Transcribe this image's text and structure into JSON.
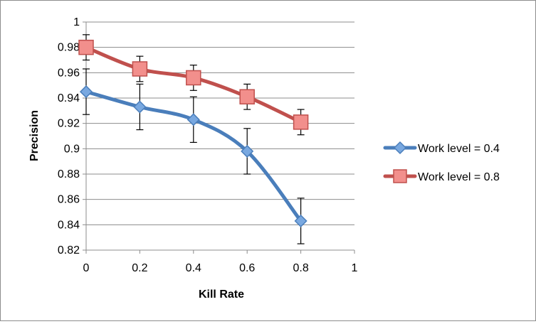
{
  "chart_data": {
    "type": "line",
    "title": "",
    "xlabel": "Kill Rate",
    "ylabel": "Precision",
    "xlim": [
      0,
      1
    ],
    "ylim": [
      0.82,
      1
    ],
    "x_ticks": [
      0,
      0.2,
      0.4,
      0.6,
      0.8,
      1
    ],
    "x_tick_labels": [
      "0",
      "0.2",
      "0.4",
      "0.6",
      "0.8",
      "1"
    ],
    "y_ticks": [
      0.82,
      0.84,
      0.86,
      0.88,
      0.9,
      0.92,
      0.94,
      0.96,
      0.98,
      1
    ],
    "y_tick_labels": [
      "0.82",
      "0.84",
      "0.86",
      "0.88",
      "0.9",
      "0.92",
      "0.94",
      "0.96",
      "0.98",
      "1"
    ],
    "grid": "horizontal",
    "legend_position": "right",
    "series": [
      {
        "name": "Work level = 0.4",
        "color": "#4a7ebb",
        "marker": "diamond",
        "x": [
          0,
          0.2,
          0.4,
          0.6,
          0.8
        ],
        "y": [
          0.945,
          0.933,
          0.923,
          0.898,
          0.843
        ],
        "error": [
          0.018,
          0.018,
          0.018,
          0.018,
          0.018
        ]
      },
      {
        "name": "Work level = 0.8",
        "color": "#c0504d",
        "marker": "square",
        "x": [
          0,
          0.2,
          0.4,
          0.6,
          0.8
        ],
        "y": [
          0.98,
          0.963,
          0.956,
          0.941,
          0.921
        ],
        "error": [
          0.01,
          0.01,
          0.01,
          0.01,
          0.01
        ]
      }
    ]
  }
}
